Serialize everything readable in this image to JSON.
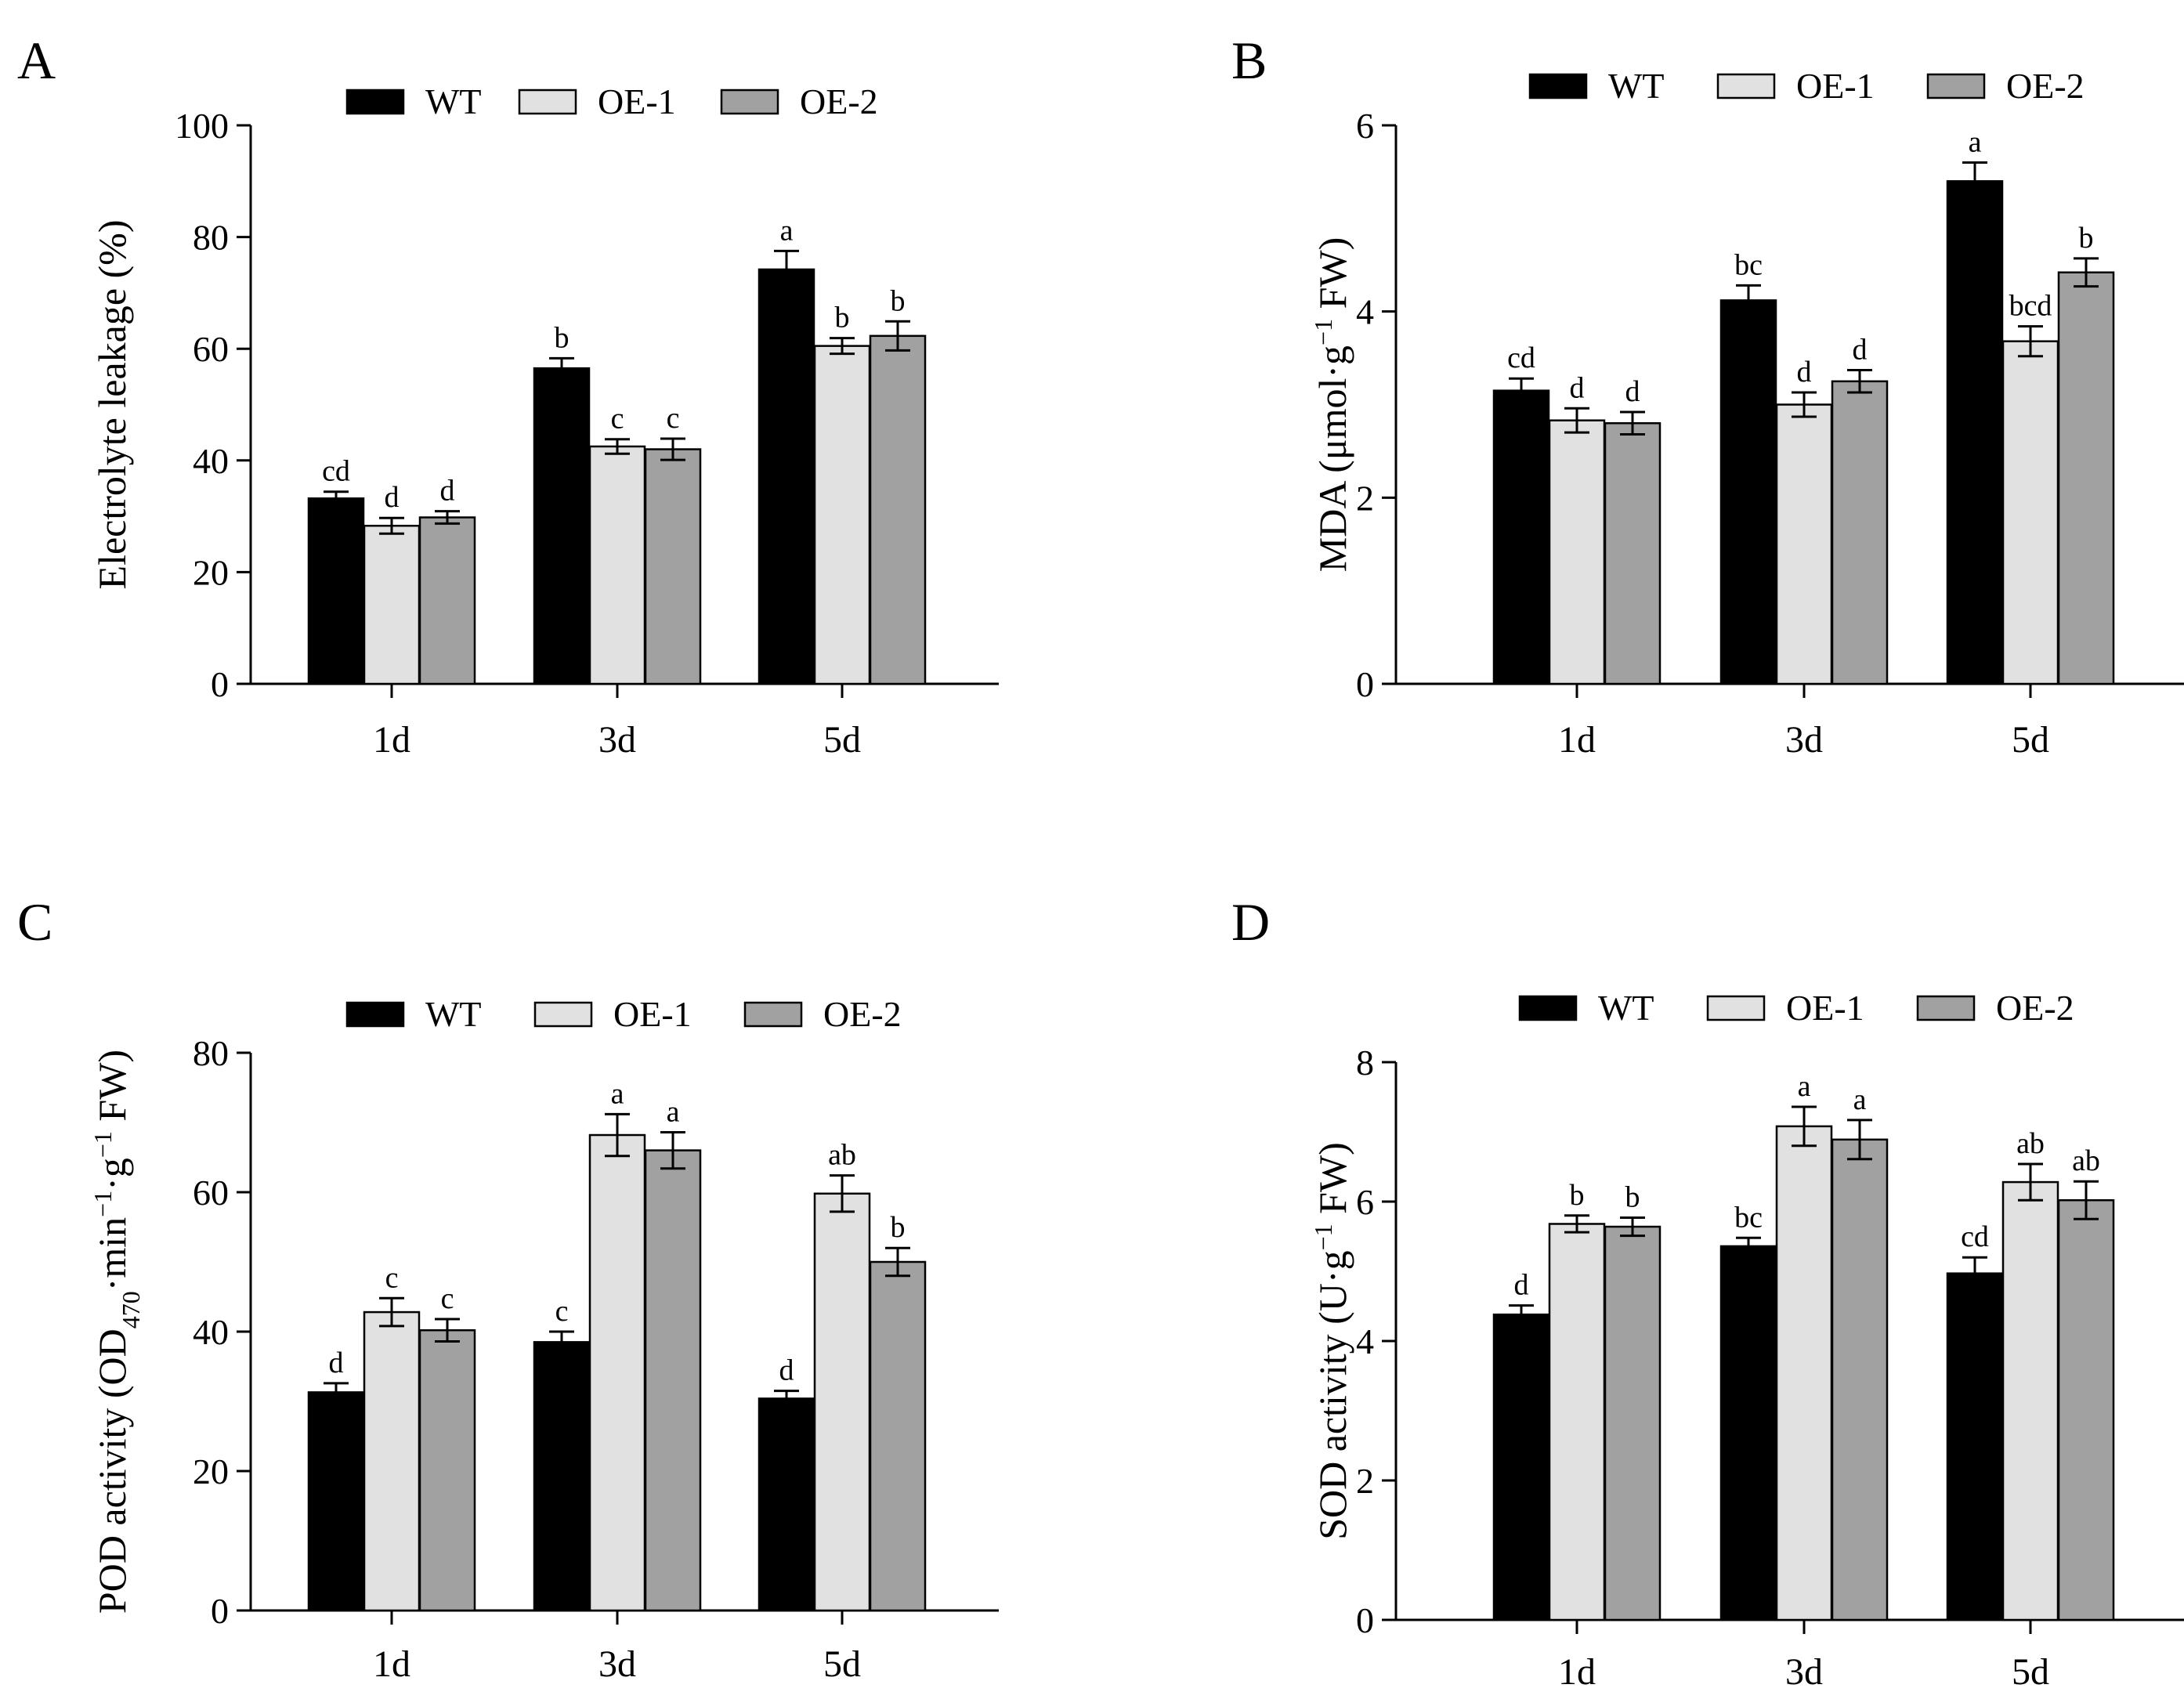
{
  "chart_data": [
    {
      "type": "bar",
      "panel": "A",
      "ylabel_parts": [
        {
          "t": "Electrolyte leakage (%)",
          "s": ""
        }
      ],
      "categories": [
        "1d",
        "3d",
        "5d"
      ],
      "ylim": [
        0,
        100
      ],
      "yticks": [
        0,
        20,
        40,
        60,
        80,
        100
      ],
      "legend": [
        "WT",
        "OE-1",
        "OE-2"
      ],
      "legend_position": "top",
      "series": [
        {
          "name": "WT",
          "color": "#000000",
          "values": [
            33.2,
            56.5,
            74.2
          ],
          "errors": [
            1.2,
            1.8,
            3.3
          ],
          "labels": [
            "cd",
            "b",
            "a"
          ]
        },
        {
          "name": "OE-1",
          "color": "#e1e1e1",
          "values": [
            28.3,
            42.5,
            60.5
          ],
          "errors": [
            1.4,
            1.3,
            1.4
          ],
          "labels": [
            "d",
            "c",
            "b"
          ]
        },
        {
          "name": "OE-2",
          "color": "#a1a1a1",
          "values": [
            29.8,
            42.0,
            62.3
          ],
          "errors": [
            1.1,
            1.9,
            2.6
          ],
          "labels": [
            "d",
            "c",
            "b"
          ]
        }
      ]
    },
    {
      "type": "bar",
      "panel": "B",
      "ylabel_parts": [
        {
          "t": "MDA (μmol·g",
          "s": ""
        },
        {
          "t": "−1",
          "s": "sup"
        },
        {
          "t": " FW)",
          "s": ""
        }
      ],
      "categories": [
        "1d",
        "3d",
        "5d"
      ],
      "ylim": [
        0,
        6
      ],
      "yticks": [
        0,
        2,
        4,
        6
      ],
      "legend": [
        "WT",
        "OE-1",
        "OE-2"
      ],
      "legend_position": "top",
      "series": [
        {
          "name": "WT",
          "color": "#000000",
          "values": [
            3.15,
            4.12,
            5.4
          ],
          "errors": [
            0.13,
            0.16,
            0.2
          ],
          "labels": [
            "cd",
            "bc",
            "a"
          ]
        },
        {
          "name": "OE-1",
          "color": "#e1e1e1",
          "values": [
            2.83,
            3.0,
            3.68
          ],
          "errors": [
            0.13,
            0.13,
            0.16
          ],
          "labels": [
            "d",
            "d",
            "bcd"
          ]
        },
        {
          "name": "OE-2",
          "color": "#a1a1a1",
          "values": [
            2.8,
            3.25,
            4.42
          ],
          "errors": [
            0.12,
            0.12,
            0.15
          ],
          "labels": [
            "d",
            "d",
            "b"
          ]
        }
      ]
    },
    {
      "type": "bar",
      "panel": "C",
      "ylabel_parts": [
        {
          "t": "POD activity (OD",
          "s": ""
        },
        {
          "t": "470",
          "s": "sub"
        },
        {
          "t": "·min",
          "s": ""
        },
        {
          "t": "−1",
          "s": "sup"
        },
        {
          "t": "·g",
          "s": ""
        },
        {
          "t": "−1",
          "s": "sup"
        },
        {
          "t": " FW)",
          "s": ""
        }
      ],
      "categories": [
        "1d",
        "3d",
        "5d"
      ],
      "ylim": [
        0,
        80
      ],
      "yticks": [
        0,
        20,
        40,
        60,
        80
      ],
      "legend": [
        "WT",
        "OE-1",
        "OE-2"
      ],
      "legend_position": "top",
      "series": [
        {
          "name": "WT",
          "color": "#000000",
          "values": [
            31.3,
            38.5,
            30.4
          ],
          "errors": [
            1.3,
            1.5,
            1.1
          ],
          "labels": [
            "d",
            "c",
            "d"
          ]
        },
        {
          "name": "OE-1",
          "color": "#e1e1e1",
          "values": [
            42.8,
            68.2,
            59.8
          ],
          "errors": [
            2.0,
            3.0,
            2.6
          ],
          "labels": [
            "c",
            "a",
            "ab"
          ]
        },
        {
          "name": "OE-2",
          "color": "#a1a1a1",
          "values": [
            40.2,
            66.0,
            50.0
          ],
          "errors": [
            1.6,
            2.6,
            2.0
          ],
          "labels": [
            "c",
            "a",
            "b"
          ]
        }
      ]
    },
    {
      "type": "bar",
      "panel": "D",
      "ylabel_parts": [
        {
          "t": "SOD activity (U·g",
          "s": ""
        },
        {
          "t": "−1",
          "s": "sup"
        },
        {
          "t": " FW)",
          "s": ""
        }
      ],
      "categories": [
        "1d",
        "3d",
        "5d"
      ],
      "ylim": [
        0,
        8
      ],
      "yticks": [
        0,
        2,
        4,
        6,
        8
      ],
      "legend": [
        "WT",
        "OE-1",
        "OE-2"
      ],
      "legend_position": "top",
      "series": [
        {
          "name": "WT",
          "color": "#000000",
          "values": [
            4.38,
            5.36,
            4.97
          ],
          "errors": [
            0.13,
            0.12,
            0.23
          ],
          "labels": [
            "d",
            "bc",
            "cd"
          ]
        },
        {
          "name": "OE-1",
          "color": "#e1e1e1",
          "values": [
            5.68,
            7.08,
            6.28
          ],
          "errors": [
            0.12,
            0.28,
            0.26
          ],
          "labels": [
            "b",
            "a",
            "ab"
          ]
        },
        {
          "name": "OE-2",
          "color": "#a1a1a1",
          "values": [
            5.64,
            6.89,
            6.02
          ],
          "errors": [
            0.13,
            0.28,
            0.27
          ],
          "labels": [
            "b",
            "a",
            "ab"
          ]
        }
      ]
    }
  ]
}
